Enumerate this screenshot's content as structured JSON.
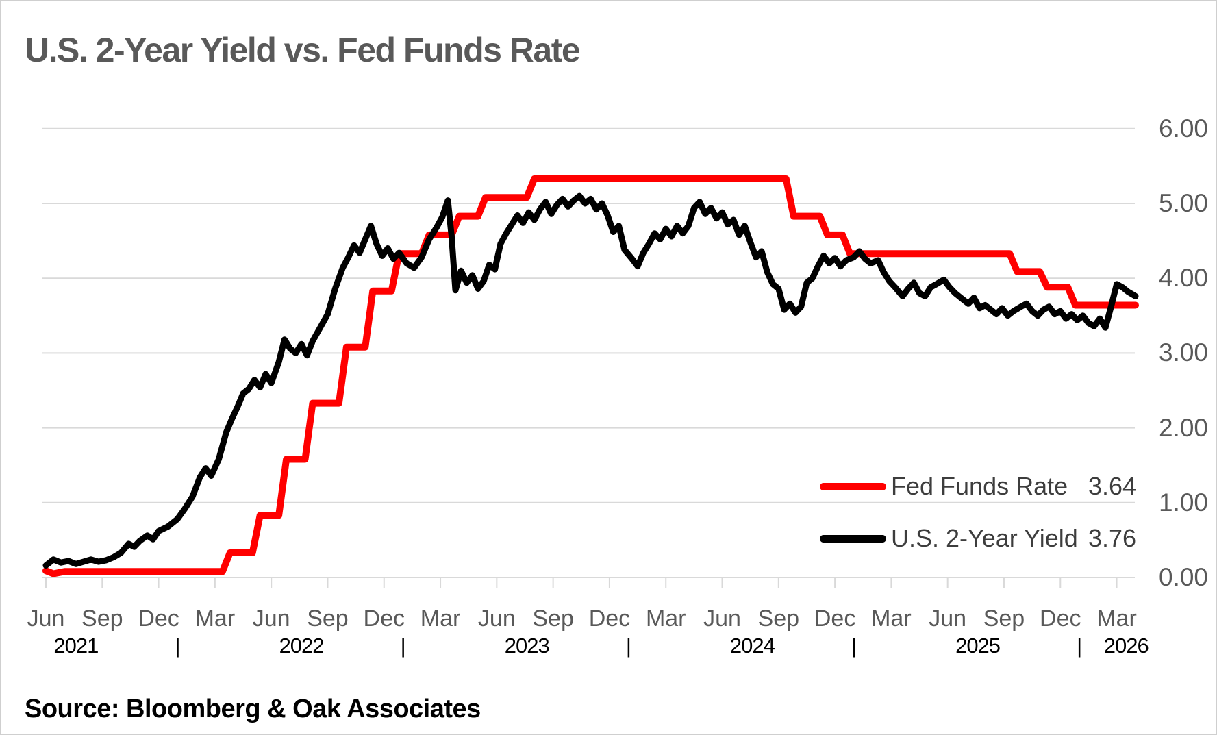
{
  "title": "U.S. 2-Year Yield vs. Fed Funds Rate",
  "source": "Source: Bloomberg & Oak Associates",
  "colors": {
    "fed_funds": "#ff0000",
    "two_year": "#000000",
    "grid": "#d9d9d9",
    "axis_text": "#595959",
    "year_text": "#000000",
    "legend_text": "#3d3d3d",
    "title_text": "#595959",
    "frame_border": "#cfcfcf"
  },
  "legend": {
    "items": [
      {
        "label": "Fed Funds Rate",
        "value": "3.64",
        "color": "#ff0000"
      },
      {
        "label": "U.S. 2-Year Yield",
        "value": "3.76",
        "color": "#000000"
      }
    ]
  },
  "y_axis": {
    "tick_labels": [
      "6.00",
      "5.00",
      "4.00",
      "3.00",
      "2.00",
      "1.00",
      "0.00"
    ],
    "tick_values": [
      6,
      5,
      4,
      3,
      2,
      1,
      0
    ]
  },
  "x_axis": {
    "month_labels": [
      "Jun",
      "Sep",
      "Dec",
      "Mar",
      "Jun",
      "Sep",
      "Dec",
      "Mar",
      "Jun",
      "Sep",
      "Dec",
      "Mar",
      "Jun",
      "Sep",
      "Dec",
      "Mar",
      "Jun",
      "Sep",
      "Dec",
      "Mar"
    ],
    "year_labels": [
      {
        "label": "2021",
        "t": 1.6
      },
      {
        "label": "2022",
        "t": 13.6
      },
      {
        "label": "2023",
        "t": 25.6
      },
      {
        "label": "2024",
        "t": 37.6
      },
      {
        "label": "2025",
        "t": 49.6
      },
      {
        "label": "2026",
        "t": 57.5
      }
    ],
    "separator_glyph": "|",
    "separator_t": [
      7,
      19,
      31,
      43,
      55
    ]
  },
  "chart_data": {
    "type": "line",
    "title": "U.S. 2-Year Yield vs. Fed Funds Rate",
    "x_start": "Jun 2021",
    "x_end": "Apr 2026",
    "x_unit_note": "t = months since Jun 2021, quarterly ticks Jun/Sep/Dec/Mar",
    "ylim": [
      0,
      6
    ],
    "grid": "horizontal gridlines at each 1.00",
    "legend_position": "inside lower right",
    "series": [
      {
        "name": "Fed Funds Rate",
        "color": "#ff0000",
        "style": "step",
        "last_value": 3.64,
        "points": [
          [
            0,
            0.09
          ],
          [
            0.4,
            0.05
          ],
          [
            1.0,
            0.08
          ],
          [
            9.4,
            0.08
          ],
          [
            9.8,
            0.33
          ],
          [
            11.0,
            0.33
          ],
          [
            11.4,
            0.83
          ],
          [
            12.4,
            0.83
          ],
          [
            12.8,
            1.58
          ],
          [
            13.8,
            1.58
          ],
          [
            14.2,
            2.33
          ],
          [
            15.6,
            2.33
          ],
          [
            16.0,
            3.08
          ],
          [
            17.0,
            3.08
          ],
          [
            17.4,
            3.83
          ],
          [
            18.4,
            3.83
          ],
          [
            18.8,
            4.33
          ],
          [
            20.0,
            4.33
          ],
          [
            20.4,
            4.58
          ],
          [
            21.6,
            4.58
          ],
          [
            22.0,
            4.83
          ],
          [
            23.0,
            4.83
          ],
          [
            23.4,
            5.08
          ],
          [
            25.6,
            5.08
          ],
          [
            26.0,
            5.33
          ],
          [
            39.4,
            5.33
          ],
          [
            39.8,
            4.83
          ],
          [
            41.2,
            4.83
          ],
          [
            41.6,
            4.58
          ],
          [
            42.4,
            4.58
          ],
          [
            42.8,
            4.33
          ],
          [
            51.3,
            4.33
          ],
          [
            51.7,
            4.09
          ],
          [
            52.9,
            4.09
          ],
          [
            53.3,
            3.88
          ],
          [
            54.4,
            3.88
          ],
          [
            54.8,
            3.64
          ],
          [
            58.0,
            3.64
          ]
        ]
      },
      {
        "name": "U.S. 2-Year Yield",
        "color": "#000000",
        "style": "line",
        "last_value": 3.76,
        "points": [
          [
            0,
            0.16
          ],
          [
            0.4,
            0.24
          ],
          [
            0.8,
            0.2
          ],
          [
            1.2,
            0.22
          ],
          [
            1.6,
            0.18
          ],
          [
            2.0,
            0.21
          ],
          [
            2.4,
            0.24
          ],
          [
            2.8,
            0.21
          ],
          [
            3.2,
            0.23
          ],
          [
            3.6,
            0.27
          ],
          [
            4.0,
            0.33
          ],
          [
            4.4,
            0.45
          ],
          [
            4.7,
            0.41
          ],
          [
            5.0,
            0.49
          ],
          [
            5.4,
            0.56
          ],
          [
            5.7,
            0.51
          ],
          [
            6.0,
            0.62
          ],
          [
            6.5,
            0.68
          ],
          [
            7.0,
            0.78
          ],
          [
            7.4,
            0.92
          ],
          [
            7.8,
            1.08
          ],
          [
            8.2,
            1.34
          ],
          [
            8.5,
            1.46
          ],
          [
            8.8,
            1.36
          ],
          [
            9.2,
            1.58
          ],
          [
            9.6,
            1.94
          ],
          [
            9.9,
            2.12
          ],
          [
            10.2,
            2.28
          ],
          [
            10.5,
            2.46
          ],
          [
            10.8,
            2.52
          ],
          [
            11.1,
            2.64
          ],
          [
            11.4,
            2.54
          ],
          [
            11.7,
            2.72
          ],
          [
            12.0,
            2.6
          ],
          [
            12.4,
            2.88
          ],
          [
            12.7,
            3.18
          ],
          [
            13.0,
            3.06
          ],
          [
            13.3,
            3.0
          ],
          [
            13.6,
            3.12
          ],
          [
            13.9,
            2.97
          ],
          [
            14.2,
            3.16
          ],
          [
            14.6,
            3.34
          ],
          [
            15.0,
            3.52
          ],
          [
            15.4,
            3.86
          ],
          [
            15.8,
            4.14
          ],
          [
            16.1,
            4.28
          ],
          [
            16.4,
            4.44
          ],
          [
            16.7,
            4.34
          ],
          [
            17.0,
            4.52
          ],
          [
            17.3,
            4.7
          ],
          [
            17.6,
            4.46
          ],
          [
            17.9,
            4.3
          ],
          [
            18.2,
            4.4
          ],
          [
            18.5,
            4.26
          ],
          [
            18.8,
            4.34
          ],
          [
            19.2,
            4.2
          ],
          [
            19.6,
            4.14
          ],
          [
            20.0,
            4.28
          ],
          [
            20.4,
            4.52
          ],
          [
            20.8,
            4.68
          ],
          [
            21.1,
            4.82
          ],
          [
            21.4,
            5.04
          ],
          [
            21.6,
            4.55
          ],
          [
            21.8,
            3.84
          ],
          [
            22.1,
            4.1
          ],
          [
            22.4,
            3.94
          ],
          [
            22.7,
            4.04
          ],
          [
            23.0,
            3.86
          ],
          [
            23.3,
            3.96
          ],
          [
            23.6,
            4.18
          ],
          [
            23.9,
            4.12
          ],
          [
            24.2,
            4.46
          ],
          [
            24.5,
            4.6
          ],
          [
            24.8,
            4.72
          ],
          [
            25.1,
            4.84
          ],
          [
            25.4,
            4.74
          ],
          [
            25.7,
            4.88
          ],
          [
            26.0,
            4.78
          ],
          [
            26.3,
            4.92
          ],
          [
            26.6,
            5.02
          ],
          [
            26.9,
            4.86
          ],
          [
            27.2,
            4.98
          ],
          [
            27.5,
            5.06
          ],
          [
            27.8,
            4.96
          ],
          [
            28.1,
            5.04
          ],
          [
            28.4,
            5.1
          ],
          [
            28.7,
            5.0
          ],
          [
            29.0,
            5.06
          ],
          [
            29.3,
            4.92
          ],
          [
            29.6,
            5.0
          ],
          [
            29.9,
            4.84
          ],
          [
            30.2,
            4.62
          ],
          [
            30.5,
            4.7
          ],
          [
            30.8,
            4.38
          ],
          [
            31.2,
            4.26
          ],
          [
            31.5,
            4.16
          ],
          [
            31.8,
            4.34
          ],
          [
            32.1,
            4.46
          ],
          [
            32.4,
            4.6
          ],
          [
            32.7,
            4.52
          ],
          [
            33.0,
            4.66
          ],
          [
            33.3,
            4.56
          ],
          [
            33.6,
            4.7
          ],
          [
            33.9,
            4.6
          ],
          [
            34.2,
            4.7
          ],
          [
            34.5,
            4.94
          ],
          [
            34.8,
            5.02
          ],
          [
            35.1,
            4.86
          ],
          [
            35.4,
            4.94
          ],
          [
            35.7,
            4.8
          ],
          [
            36.0,
            4.88
          ],
          [
            36.3,
            4.72
          ],
          [
            36.6,
            4.78
          ],
          [
            36.9,
            4.58
          ],
          [
            37.2,
            4.7
          ],
          [
            37.5,
            4.48
          ],
          [
            37.8,
            4.28
          ],
          [
            38.1,
            4.36
          ],
          [
            38.4,
            4.08
          ],
          [
            38.7,
            3.92
          ],
          [
            39.0,
            3.86
          ],
          [
            39.3,
            3.58
          ],
          [
            39.6,
            3.66
          ],
          [
            39.9,
            3.54
          ],
          [
            40.2,
            3.62
          ],
          [
            40.5,
            3.94
          ],
          [
            40.8,
            4.0
          ],
          [
            41.1,
            4.16
          ],
          [
            41.4,
            4.3
          ],
          [
            41.7,
            4.2
          ],
          [
            42.0,
            4.27
          ],
          [
            42.3,
            4.16
          ],
          [
            42.6,
            4.24
          ],
          [
            43.0,
            4.28
          ],
          [
            43.3,
            4.36
          ],
          [
            43.6,
            4.26
          ],
          [
            43.9,
            4.2
          ],
          [
            44.3,
            4.24
          ],
          [
            44.6,
            4.08
          ],
          [
            44.9,
            3.96
          ],
          [
            45.2,
            3.88
          ],
          [
            45.6,
            3.76
          ],
          [
            45.9,
            3.86
          ],
          [
            46.2,
            3.94
          ],
          [
            46.5,
            3.8
          ],
          [
            46.8,
            3.76
          ],
          [
            47.1,
            3.88
          ],
          [
            47.4,
            3.92
          ],
          [
            47.8,
            3.98
          ],
          [
            48.1,
            3.88
          ],
          [
            48.4,
            3.8
          ],
          [
            48.7,
            3.74
          ],
          [
            49.1,
            3.66
          ],
          [
            49.4,
            3.74
          ],
          [
            49.7,
            3.6
          ],
          [
            50.0,
            3.64
          ],
          [
            50.3,
            3.58
          ],
          [
            50.6,
            3.52
          ],
          [
            50.9,
            3.6
          ],
          [
            51.2,
            3.5
          ],
          [
            51.5,
            3.56
          ],
          [
            51.9,
            3.62
          ],
          [
            52.2,
            3.66
          ],
          [
            52.5,
            3.56
          ],
          [
            52.8,
            3.5
          ],
          [
            53.1,
            3.58
          ],
          [
            53.4,
            3.62
          ],
          [
            53.7,
            3.52
          ],
          [
            54.0,
            3.56
          ],
          [
            54.3,
            3.46
          ],
          [
            54.6,
            3.52
          ],
          [
            54.9,
            3.44
          ],
          [
            55.2,
            3.5
          ],
          [
            55.5,
            3.4
          ],
          [
            55.8,
            3.36
          ],
          [
            56.1,
            3.46
          ],
          [
            56.4,
            3.34
          ],
          [
            56.7,
            3.62
          ],
          [
            57.0,
            3.92
          ],
          [
            57.3,
            3.88
          ],
          [
            57.6,
            3.82
          ],
          [
            58.0,
            3.76
          ]
        ]
      }
    ]
  }
}
